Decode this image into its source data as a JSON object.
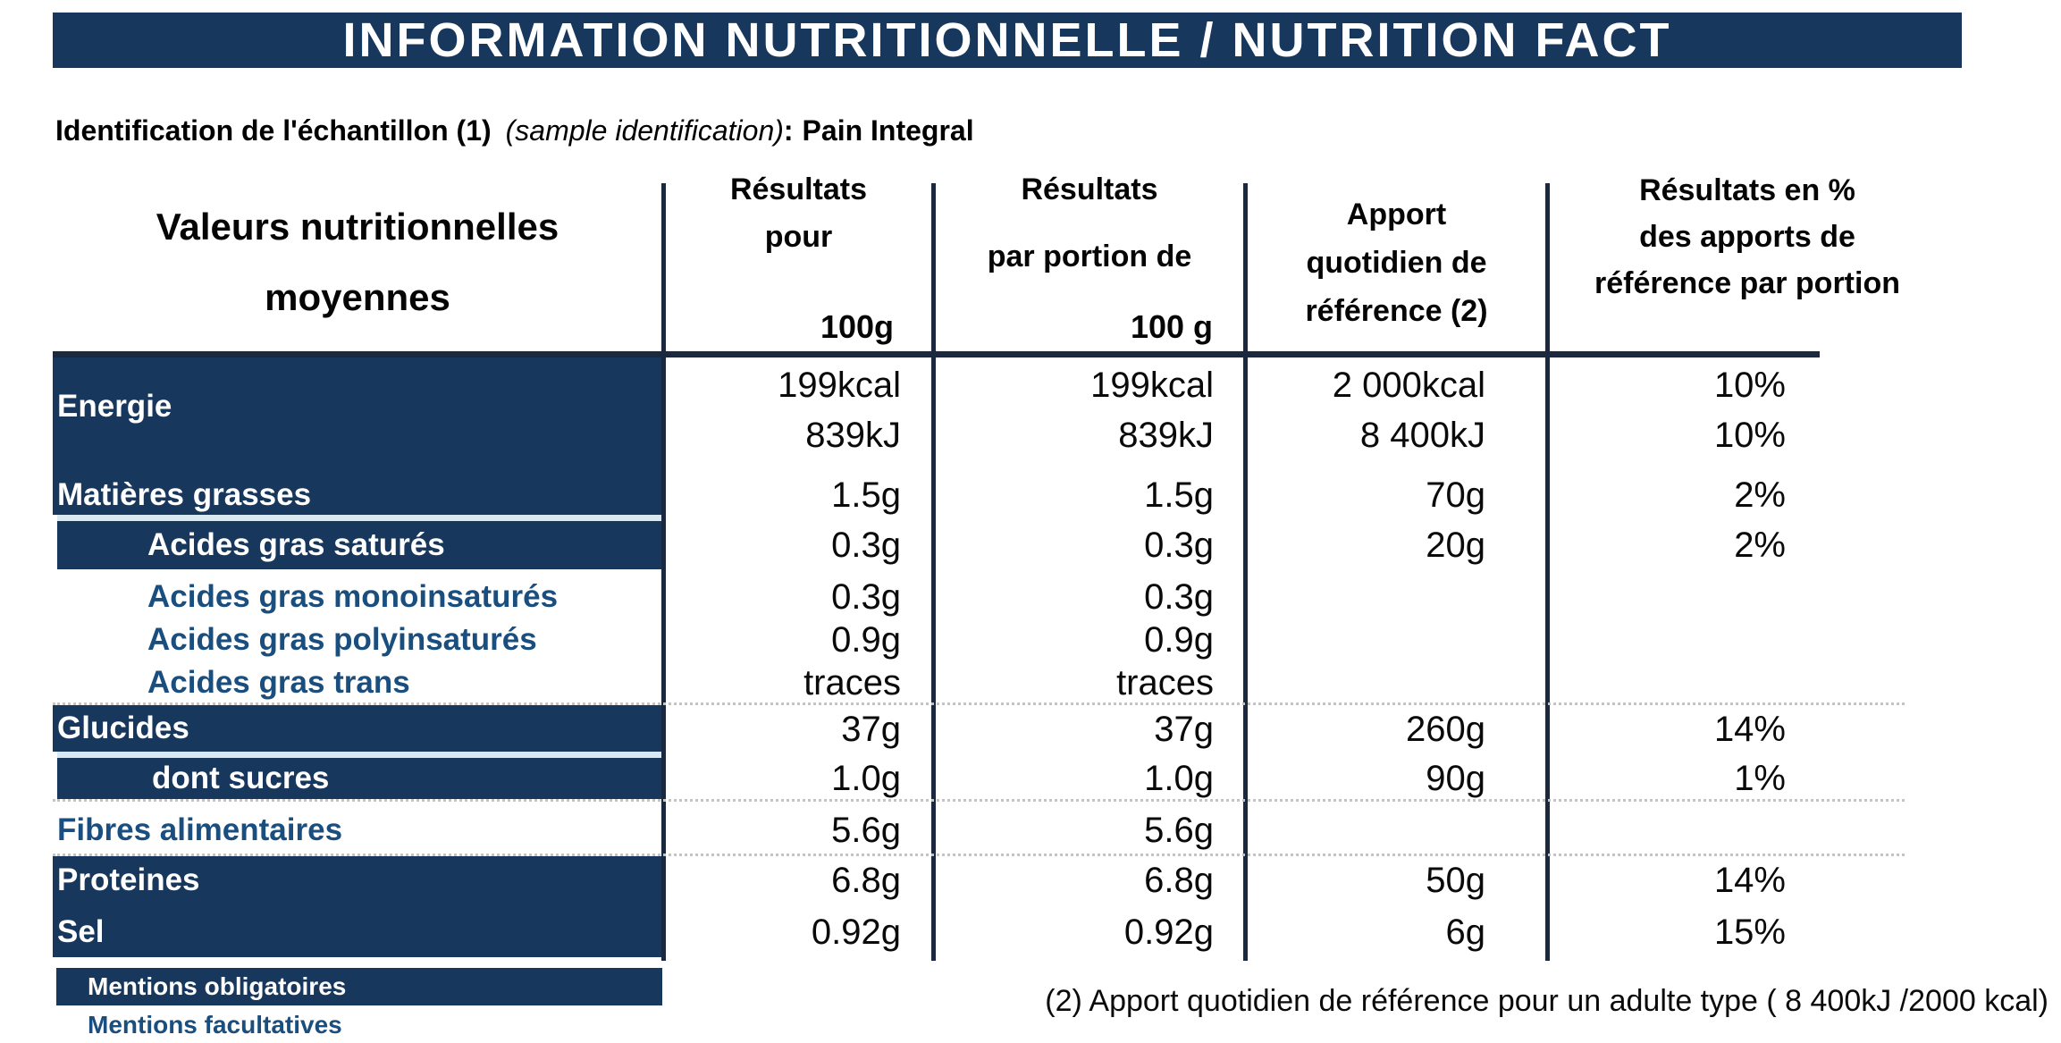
{
  "title": "INFORMATION NUTRITIONNELLE / NUTRITION FACT",
  "sample": {
    "label_fr": "Identification de l'échantillon (1)",
    "label_en": "(sample identification)",
    "separator": ":",
    "value": "Pain Integral"
  },
  "table": {
    "headers": {
      "col1": "Valeurs nutritionnelles\nmoyennes",
      "col2_main": "Résultats\npour",
      "col2_unit": "100g",
      "col3_main": "Résultats\npar portion de",
      "col3_unit": "100 g",
      "col4": "Apport\nquotidien de\nréférence (2)",
      "col5": "Résultats en %\ndes apports de\nréférence par portion"
    },
    "rows": [
      {
        "label": "Energie",
        "values": [
          "199kcal",
          "199kcal",
          "2 000kcal",
          "10%"
        ]
      },
      {
        "label": "",
        "values": [
          "839kJ",
          "839kJ",
          "8 400kJ",
          "10%"
        ]
      },
      {
        "label": "Matières grasses",
        "values": [
          "1.5g",
          "1.5g",
          "70g",
          "2%"
        ]
      },
      {
        "label": "Acides gras saturés",
        "values": [
          "0.3g",
          "0.3g",
          "20g",
          "2%"
        ]
      },
      {
        "label": "Acides gras monoinsaturés",
        "values": [
          "0.3g",
          "0.3g",
          "",
          ""
        ]
      },
      {
        "label": "Acides gras polyinsaturés",
        "values": [
          "0.9g",
          "0.9g",
          "",
          ""
        ]
      },
      {
        "label": "Acides gras trans",
        "values": [
          "traces",
          "traces",
          "",
          ""
        ]
      },
      {
        "label": "Glucides",
        "values": [
          "37g",
          "37g",
          "260g",
          "14%"
        ]
      },
      {
        "label": "dont sucres",
        "values": [
          "1.0g",
          "1.0g",
          "90g",
          "1%"
        ]
      },
      {
        "label": "Fibres alimentaires",
        "values": [
          "5.6g",
          "5.6g",
          "",
          ""
        ]
      },
      {
        "label": "Proteines",
        "values": [
          "6.8g",
          "6.8g",
          "50g",
          "14%"
        ]
      },
      {
        "label": "Sel",
        "values": [
          "0.92g",
          "0.92g",
          "6g",
          "15%"
        ]
      }
    ],
    "legend": {
      "obligatoires": "Mentions obligatoires",
      "facultatives": "Mentions facultatives"
    }
  },
  "footnote": "(2) Apport quotidien de référence pour un adulte type ( 8 400kJ /2000 kcal)",
  "colors": {
    "navy": "#17375D",
    "blue_text": "#1A4E7E",
    "line": "#1B2940"
  }
}
